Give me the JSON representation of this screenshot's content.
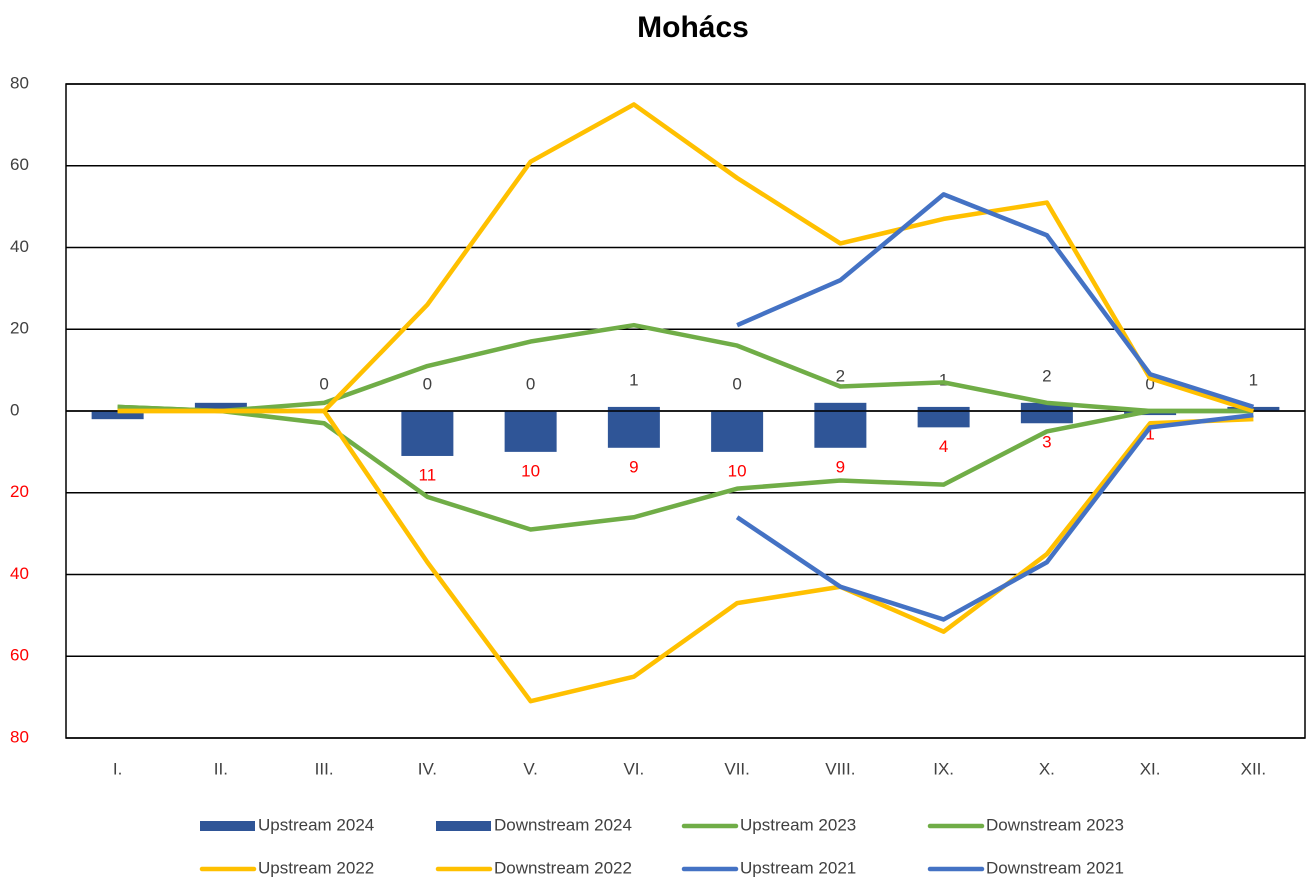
{
  "chart_data": {
    "type": "combo",
    "title": "Mohács",
    "categories": [
      "I.",
      "II.",
      "III.",
      "IV.",
      "V.",
      "VI.",
      "VII.",
      "VIII.",
      "IX.",
      "X.",
      "XI.",
      "XII."
    ],
    "ylim": [
      -80,
      80
    ],
    "yticks": [
      80,
      60,
      40,
      20,
      0,
      {
        "value": -20,
        "label": "20"
      },
      {
        "value": -40,
        "label": "40"
      },
      {
        "value": -60,
        "label": "60"
      },
      {
        "value": -80,
        "label": "80"
      }
    ],
    "negative_tick_color": "#ff0000",
    "grid": true,
    "legend": "bottom",
    "series": [
      {
        "name": "Upstream 2024",
        "type": "bar",
        "color": "#2f5597",
        "label_color": "#404040",
        "values": [
          0,
          2,
          0,
          0,
          0,
          1,
          0,
          2,
          1,
          2,
          0,
          1
        ],
        "value_labels": [
          null,
          null,
          "0",
          "0",
          "0",
          "1",
          "0",
          "2",
          "1",
          "2",
          "0",
          "1"
        ]
      },
      {
        "name": "Downstream 2024",
        "type": "bar",
        "color": "#2f5597",
        "label_color": "#ff0000",
        "values": [
          -2,
          0,
          0,
          -11,
          -10,
          -9,
          -10,
          -9,
          -4,
          -3,
          -1,
          0
        ],
        "value_labels": [
          null,
          null,
          null,
          "11",
          "10",
          "9",
          "10",
          "9",
          "4",
          "3",
          "1",
          null
        ]
      },
      {
        "name": "Upstream 2023",
        "type": "line",
        "color": "#70ad47",
        "values": [
          1,
          0,
          2,
          11,
          17,
          21,
          16,
          6,
          7,
          2,
          0,
          0
        ]
      },
      {
        "name": "Downstream 2023",
        "type": "line",
        "color": "#70ad47",
        "values": [
          1,
          0,
          -3,
          -21,
          -29,
          -26,
          -19,
          -17,
          -18,
          -5,
          0,
          0
        ]
      },
      {
        "name": "Upstream 2022",
        "type": "line",
        "color": "#ffc000",
        "values": [
          0,
          0,
          0,
          26,
          61,
          75,
          57,
          41,
          47,
          51,
          8,
          0
        ]
      },
      {
        "name": "Downstream 2022",
        "type": "line",
        "color": "#ffc000",
        "values": [
          0,
          0,
          0,
          -37,
          -71,
          -65,
          -47,
          -43,
          -54,
          -35,
          -3,
          -2
        ]
      },
      {
        "name": "Upstream 2021",
        "type": "line",
        "color": "#4472c4",
        "values": [
          null,
          null,
          null,
          null,
          null,
          null,
          21,
          32,
          53,
          43,
          9,
          1
        ]
      },
      {
        "name": "Downstream 2021",
        "type": "line",
        "color": "#4472c4",
        "values": [
          null,
          null,
          null,
          null,
          null,
          null,
          -26,
          -43,
          -51,
          -37,
          -4,
          -1
        ]
      }
    ]
  }
}
